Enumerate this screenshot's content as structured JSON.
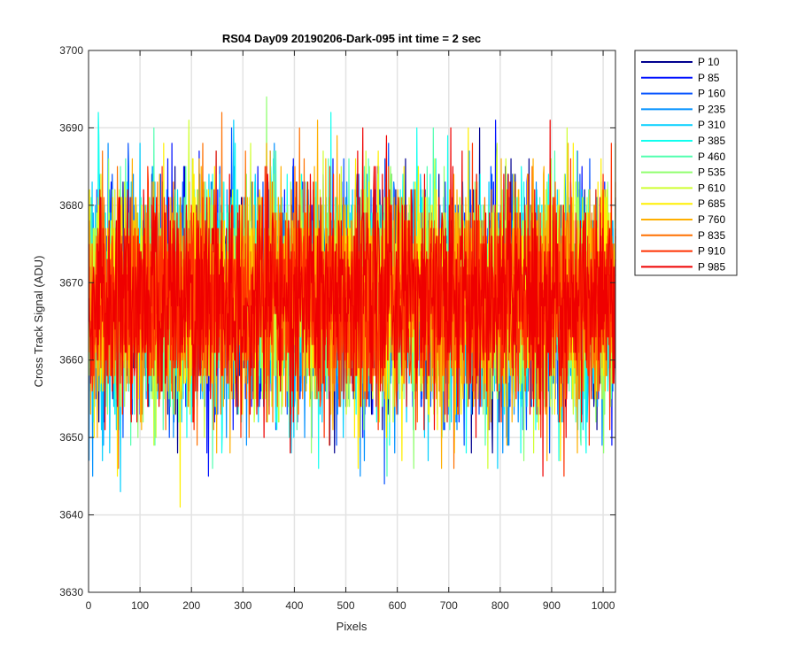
{
  "chart_data": {
    "type": "line",
    "title": "RS04 Day09 20190206-Dark-095 int time = 2 sec",
    "xlabel": "Pixels",
    "ylabel": "Cross Track Signal (ADU)",
    "xlim": [
      0,
      1024
    ],
    "ylim": [
      3630,
      3700
    ],
    "xticks": [
      0,
      100,
      200,
      300,
      400,
      500,
      600,
      700,
      800,
      900,
      1000
    ],
    "yticks": [
      3630,
      3640,
      3650,
      3660,
      3670,
      3680,
      3690,
      3700
    ],
    "grid": true,
    "legend_position": "outside-top-right",
    "series": [
      {
        "name": "P 10",
        "color": "#00008f",
        "center": 3668,
        "spread": 7,
        "min": 3648,
        "max": 3693
      },
      {
        "name": "P 85",
        "color": "#0010ff",
        "center": 3668,
        "spread": 7,
        "min": 3641,
        "max": 3695
      },
      {
        "name": "P 160",
        "color": "#0050ff",
        "center": 3668,
        "spread": 7,
        "min": 3644,
        "max": 3690
      },
      {
        "name": "P 235",
        "color": "#0090ff",
        "center": 3668,
        "spread": 7,
        "min": 3645,
        "max": 3689
      },
      {
        "name": "P 310",
        "color": "#00cfff",
        "center": 3668,
        "spread": 7,
        "min": 3643,
        "max": 3694
      },
      {
        "name": "P 385",
        "color": "#10ffef",
        "center": 3668,
        "spread": 7,
        "min": 3642,
        "max": 3695
      },
      {
        "name": "P 460",
        "color": "#50ffaf",
        "center": 3668,
        "spread": 7,
        "min": 3645,
        "max": 3690
      },
      {
        "name": "P 535",
        "color": "#90ff6f",
        "center": 3668,
        "spread": 7,
        "min": 3643,
        "max": 3697
      },
      {
        "name": "P 610",
        "color": "#cfff30",
        "center": 3668,
        "spread": 7,
        "min": 3646,
        "max": 3692
      },
      {
        "name": "P 685",
        "color": "#ffef00",
        "center": 3668,
        "spread": 7,
        "min": 3638,
        "max": 3692
      },
      {
        "name": "P 760",
        "color": "#ffaf00",
        "center": 3668,
        "spread": 7,
        "min": 3638,
        "max": 3692
      },
      {
        "name": "P 835",
        "color": "#ff7000",
        "center": 3668,
        "spread": 7,
        "min": 3638,
        "max": 3692
      },
      {
        "name": "P 910",
        "color": "#ff3000",
        "center": 3668,
        "spread": 7,
        "min": 3645,
        "max": 3691
      },
      {
        "name": "P 985",
        "color": "#ef0000",
        "center": 3668,
        "spread": 7,
        "min": 3640,
        "max": 3696
      }
    ]
  }
}
